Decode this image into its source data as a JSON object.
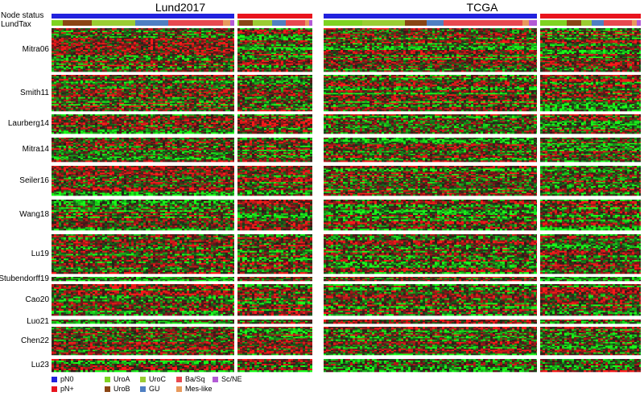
{
  "chart_data": {
    "type": "heatmap",
    "description_free": true,
    "titles": [
      "Lund2017",
      "TCGA"
    ],
    "annotation_bars": [
      "Node status",
      "LundTax"
    ],
    "signatures": [
      "Mitra06",
      "Smith11",
      "Laurberg14",
      "Mitra14",
      "Seiler16",
      "Wang18",
      "Lu19",
      "Stubendorff19",
      "Cao20",
      "Luo21",
      "Chen22",
      "Lu23"
    ],
    "signature_rows": [
      32,
      26,
      14,
      18,
      22,
      20,
      26,
      4,
      20,
      3,
      22,
      8
    ],
    "cohorts": [
      {
        "name": "Lund2017",
        "node_status": [
          {
            "group": "pN0",
            "fraction": 0.71
          },
          {
            "group": "pN+",
            "fraction": 0.29
          }
        ],
        "lundtax_pN0": [
          {
            "subtype": "UroA",
            "fraction": 0.06
          },
          {
            "subtype": "UroB",
            "fraction": 0.16
          },
          {
            "subtype": "UroC",
            "fraction": 0.24
          },
          {
            "subtype": "GU",
            "fraction": 0.18
          },
          {
            "subtype": "Ba/Sq",
            "fraction": 0.3
          },
          {
            "subtype": "Mes-like",
            "fraction": 0.04
          },
          {
            "subtype": "Sc/NE",
            "fraction": 0.02
          }
        ],
        "lundtax_pN+": [
          {
            "subtype": "UroA",
            "fraction": 0.02
          },
          {
            "subtype": "UroB",
            "fraction": 0.18
          },
          {
            "subtype": "UroC",
            "fraction": 0.26
          },
          {
            "subtype": "GU",
            "fraction": 0.18
          },
          {
            "subtype": "Ba/Sq",
            "fraction": 0.26
          },
          {
            "subtype": "Mes-like",
            "fraction": 0.05
          },
          {
            "subtype": "Sc/NE",
            "fraction": 0.05
          }
        ]
      },
      {
        "name": "TCGA",
        "node_status": [
          {
            "group": "pN0",
            "fraction": 0.68
          },
          {
            "group": "pN+",
            "fraction": 0.32
          }
        ],
        "lundtax_pN0": [
          {
            "subtype": "UroA",
            "fraction": 0.18
          },
          {
            "subtype": "UroC",
            "fraction": 0.2
          },
          {
            "subtype": "UroB",
            "fraction": 0.1
          },
          {
            "subtype": "GU",
            "fraction": 0.08
          },
          {
            "subtype": "Ba/Sq",
            "fraction": 0.37
          },
          {
            "subtype": "Mes-like",
            "fraction": 0.03
          },
          {
            "subtype": "Sc/NE",
            "fraction": 0.04
          }
        ],
        "lundtax_pN+": [
          {
            "subtype": "UroA",
            "fraction": 0.26
          },
          {
            "subtype": "UroB",
            "fraction": 0.14
          },
          {
            "subtype": "UroC",
            "fraction": 0.1
          },
          {
            "subtype": "GU",
            "fraction": 0.12
          },
          {
            "subtype": "Ba/Sq",
            "fraction": 0.28
          },
          {
            "subtype": "Mes-like",
            "fraction": 0.05
          },
          {
            "subtype": "Sc/NE",
            "fraction": 0.05
          }
        ]
      }
    ],
    "heatmap_colors": {
      "low": "#19e619",
      "mid": "#000000",
      "high": "#e61919"
    },
    "legend": {
      "node_status": [
        {
          "label": "pN0",
          "color": "#2222dd"
        },
        {
          "label": "pN+",
          "color": "#e8141e"
        }
      ],
      "lundtax": [
        {
          "label": "UroA",
          "color": "#7ed321"
        },
        {
          "label": "UroB",
          "color": "#8b4513"
        },
        {
          "label": "UroC",
          "color": "#9acd32"
        },
        {
          "label": "GU",
          "color": "#4f7fc2"
        },
        {
          "label": "Ba/Sq",
          "color": "#e8484f"
        },
        {
          "label": "Mes-like",
          "color": "#e89a5c"
        },
        {
          "label": "Sc/NE",
          "color": "#b35ad6"
        }
      ]
    }
  }
}
